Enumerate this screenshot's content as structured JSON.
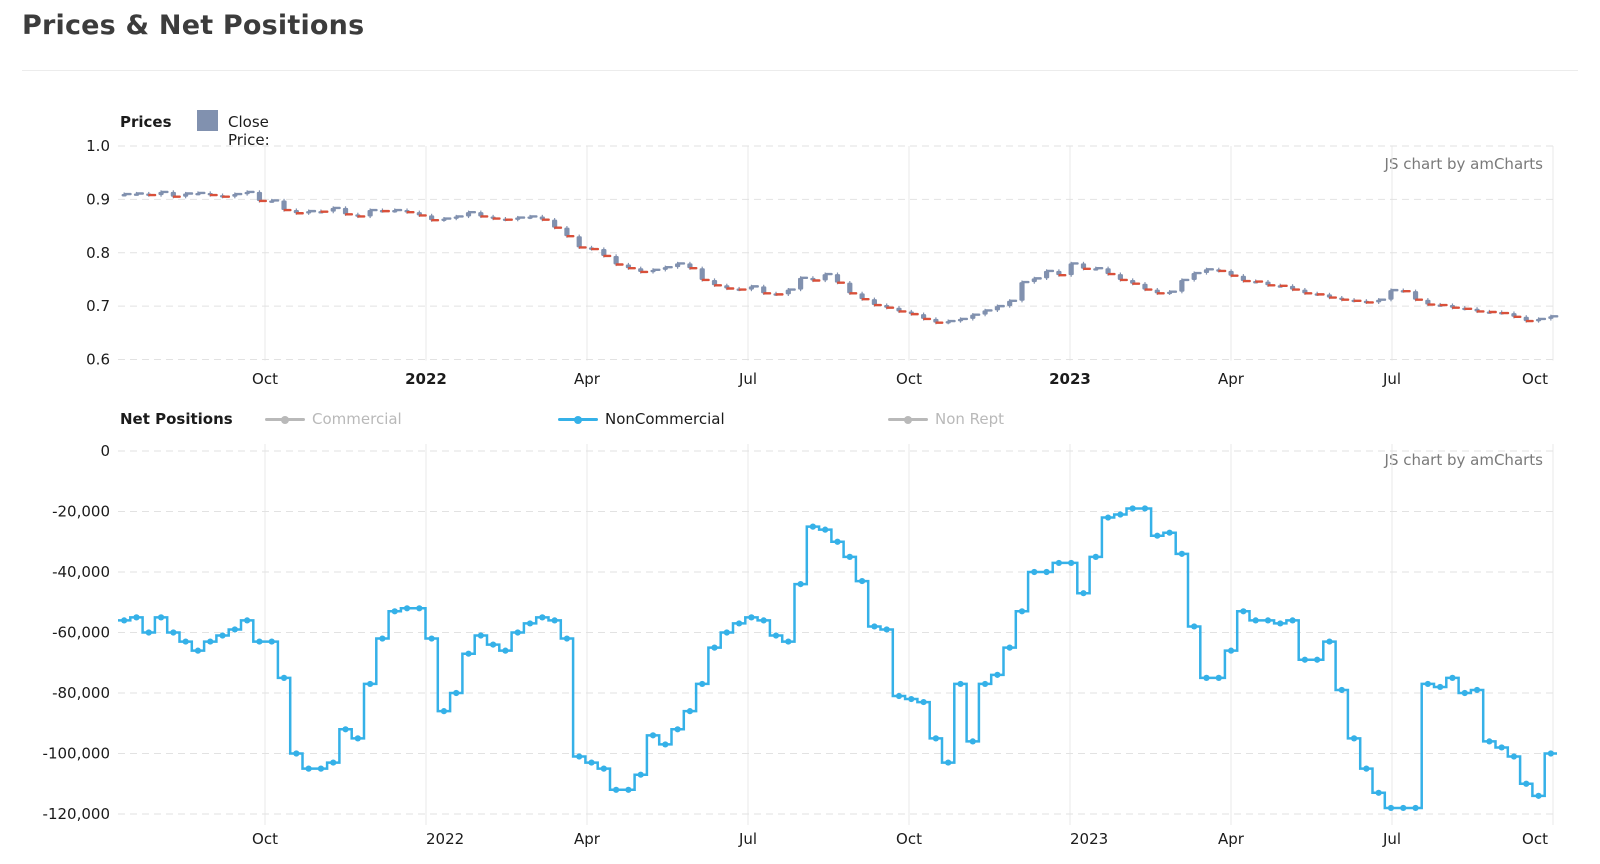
{
  "page": {
    "title": "Prices & Net Positions"
  },
  "watermark": "JS chart by amCharts",
  "colors": {
    "candle_body": "#8191AF",
    "candle_down_tick": "#D9503A",
    "noncommercial_line": "#35B1E8",
    "inactive_legend": "#B9B9B9",
    "axis_text": "#1b1b1b",
    "grid": "#E2E2E2"
  },
  "chart_data": [
    {
      "id": "prices",
      "type": "candlestick",
      "title": "Prices",
      "series_label": "Close Price:",
      "legend_position": "top",
      "grid": "on",
      "x_ticks": [
        "Oct",
        "2022",
        "Apr",
        "Jul",
        "Oct",
        "2023",
        "Apr",
        "Jul",
        "Oct"
      ],
      "y_ticks": [
        "1.0",
        "0.9",
        "0.8",
        "0.7",
        "0.6"
      ],
      "ylim": [
        0.6,
        1.0
      ],
      "x_range_note": "weekly closes, Jul 2021 - Oct 2023",
      "weekly_close": [
        0.91,
        0.911,
        0.908,
        0.914,
        0.905,
        0.911,
        0.912,
        0.908,
        0.905,
        0.91,
        0.914,
        0.897,
        0.898,
        0.88,
        0.874,
        0.878,
        0.877,
        0.884,
        0.872,
        0.868,
        0.88,
        0.878,
        0.88,
        0.876,
        0.87,
        0.861,
        0.864,
        0.868,
        0.876,
        0.868,
        0.864,
        0.862,
        0.866,
        0.868,
        0.862,
        0.847,
        0.831,
        0.81,
        0.807,
        0.794,
        0.778,
        0.771,
        0.764,
        0.768,
        0.773,
        0.78,
        0.771,
        0.749,
        0.739,
        0.733,
        0.731,
        0.737,
        0.724,
        0.722,
        0.731,
        0.753,
        0.748,
        0.76,
        0.744,
        0.724,
        0.713,
        0.702,
        0.697,
        0.69,
        0.685,
        0.676,
        0.669,
        0.672,
        0.676,
        0.684,
        0.692,
        0.7,
        0.71,
        0.745,
        0.752,
        0.766,
        0.758,
        0.78,
        0.77,
        0.771,
        0.76,
        0.749,
        0.742,
        0.731,
        0.724,
        0.727,
        0.749,
        0.762,
        0.769,
        0.766,
        0.757,
        0.747,
        0.746,
        0.739,
        0.738,
        0.731,
        0.724,
        0.722,
        0.716,
        0.712,
        0.71,
        0.707,
        0.712,
        0.73,
        0.728,
        0.712,
        0.703,
        0.702,
        0.697,
        0.695,
        0.69,
        0.689,
        0.687,
        0.68,
        0.672,
        0.676,
        0.681
      ]
    },
    {
      "id": "net_positions",
      "type": "line",
      "subtype": "step",
      "title": "Net Positions",
      "legend": [
        {
          "label": "Commercial",
          "active": false
        },
        {
          "label": "NonCommercial",
          "active": true
        },
        {
          "label": "Non Rept",
          "active": false
        }
      ],
      "grid": "on",
      "x_ticks": [
        "Oct",
        "2022",
        "Apr",
        "Jul",
        "Oct",
        "2023",
        "Apr",
        "Jul",
        "Oct"
      ],
      "y_ticks": [
        "0",
        "-20,000",
        "-40,000",
        "-60,000",
        "-80,000",
        "-100,000",
        "-120,000"
      ],
      "ylim": [
        -120000,
        0
      ],
      "values": [
        -56000,
        -55000,
        -60000,
        -55000,
        -60000,
        -63000,
        -66000,
        -63000,
        -61000,
        -59000,
        -56000,
        -63000,
        -63000,
        -75000,
        -100000,
        -105000,
        -105000,
        -103000,
        -92000,
        -95000,
        -77000,
        -62000,
        -53000,
        -52000,
        -52000,
        -62000,
        -86000,
        -80000,
        -67000,
        -61000,
        -64000,
        -66000,
        -60000,
        -57000,
        -55000,
        -56000,
        -62000,
        -101000,
        -103000,
        -105000,
        -112000,
        -112000,
        -107000,
        -94000,
        -97000,
        -92000,
        -86000,
        -77000,
        -65000,
        -60000,
        -57000,
        -55000,
        -56000,
        -61000,
        -63000,
        -44000,
        -25000,
        -26000,
        -30000,
        -35000,
        -43000,
        -58000,
        -59000,
        -81000,
        -82000,
        -83000,
        -95000,
        -103000,
        -77000,
        -96000,
        -77000,
        -74000,
        -65000,
        -53000,
        -40000,
        -40000,
        -37000,
        -37000,
        -47000,
        -35000,
        -22000,
        -21000,
        -19000,
        -19000,
        -28000,
        -27000,
        -34000,
        -58000,
        -75000,
        -75000,
        -66000,
        -53000,
        -56000,
        -56000,
        -57000,
        -56000,
        -69000,
        -69000,
        -63000,
        -79000,
        -95000,
        -105000,
        -113000,
        -118000,
        -118000,
        -118000,
        -77000,
        -78000,
        -75000,
        -80000,
        -79000,
        -96000,
        -98000,
        -101000,
        -110000,
        -114000,
        -100000
      ]
    }
  ]
}
